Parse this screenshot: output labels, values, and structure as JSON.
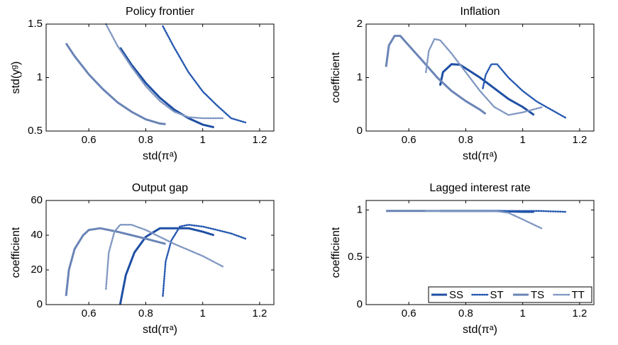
{
  "chart_data": [
    {
      "type": "line",
      "title": "Policy frontier",
      "xlabel": "std(πᵃ)",
      "ylabel": "std(yᵍ)",
      "xlim": [
        0.45,
        1.25
      ],
      "xticks": [
        0.6,
        0.8,
        1,
        1.2
      ],
      "ylim": [
        0.5,
        1.5
      ],
      "yticks": [
        0.5,
        1,
        1.5
      ],
      "series": [
        {
          "name": "SS",
          "color": "#1f4fa3",
          "linestyle": "solid",
          "linewidth": 3,
          "x": [
            0.71,
            0.75,
            0.8,
            0.85,
            0.9,
            0.95,
            1.0,
            1.04
          ],
          "values": [
            1.28,
            1.12,
            0.95,
            0.81,
            0.7,
            0.62,
            0.56,
            0.535
          ]
        },
        {
          "name": "ST",
          "color": "#2457b0",
          "linestyle": "dotted",
          "linewidth": 2.5,
          "x": [
            0.86,
            0.9,
            0.95,
            1.0,
            1.05,
            1.1,
            1.15
          ],
          "values": [
            1.48,
            1.28,
            1.05,
            0.87,
            0.74,
            0.62,
            0.58
          ]
        },
        {
          "name": "TS",
          "color": "#6a84b6",
          "linestyle": "solid",
          "linewidth": 3,
          "x": [
            0.52,
            0.55,
            0.6,
            0.65,
            0.7,
            0.75,
            0.8,
            0.85,
            0.87
          ],
          "values": [
            1.32,
            1.2,
            1.03,
            0.89,
            0.77,
            0.68,
            0.61,
            0.57,
            0.565
          ]
        },
        {
          "name": "TT",
          "color": "#8097c2",
          "linestyle": "dotted",
          "linewidth": 2.5,
          "x": [
            0.66,
            0.7,
            0.75,
            0.8,
            0.85,
            0.9,
            0.95,
            1.0,
            1.07
          ],
          "values": [
            1.5,
            1.3,
            1.1,
            0.92,
            0.78,
            0.68,
            0.63,
            0.62,
            0.62
          ]
        }
      ]
    },
    {
      "type": "line",
      "title": "Inflation",
      "xlabel": "std(πᵃ)",
      "ylabel": "coefficient",
      "xlim": [
        0.45,
        1.25
      ],
      "xticks": [
        0.6,
        0.8,
        1,
        1.2
      ],
      "ylim": [
        0,
        2
      ],
      "yticks": [
        0,
        1,
        2
      ],
      "series": [
        {
          "name": "SS",
          "color": "#1f4fa3",
          "linestyle": "solid",
          "linewidth": 3,
          "x": [
            0.71,
            0.72,
            0.75,
            0.78,
            0.85,
            0.9,
            0.95,
            1.0,
            1.04
          ],
          "values": [
            0.85,
            1.1,
            1.25,
            1.24,
            1.0,
            0.8,
            0.6,
            0.45,
            0.3
          ]
        },
        {
          "name": "ST",
          "color": "#2457b0",
          "linestyle": "dotted",
          "linewidth": 2.5,
          "x": [
            0.86,
            0.87,
            0.89,
            0.91,
            0.95,
            1.0,
            1.05,
            1.1,
            1.15
          ],
          "values": [
            0.8,
            1.05,
            1.25,
            1.25,
            1.0,
            0.75,
            0.55,
            0.4,
            0.25
          ]
        },
        {
          "name": "TS",
          "color": "#6a84b6",
          "linestyle": "solid",
          "linewidth": 3,
          "x": [
            0.52,
            0.53,
            0.55,
            0.57,
            0.6,
            0.65,
            0.7,
            0.75,
            0.8,
            0.85,
            0.87
          ],
          "values": [
            1.2,
            1.6,
            1.78,
            1.78,
            1.6,
            1.3,
            1.0,
            0.75,
            0.56,
            0.4,
            0.32
          ]
        },
        {
          "name": "TT",
          "color": "#8097c2",
          "linestyle": "dotted",
          "linewidth": 2.5,
          "x": [
            0.66,
            0.67,
            0.69,
            0.71,
            0.75,
            0.8,
            0.85,
            0.9,
            0.95,
            1.0,
            1.07
          ],
          "values": [
            1.1,
            1.5,
            1.72,
            1.7,
            1.45,
            1.1,
            0.75,
            0.45,
            0.3,
            0.35,
            0.45
          ]
        }
      ]
    },
    {
      "type": "line",
      "title": "Output gap",
      "xlabel": "std(πᵃ)",
      "ylabel": "coefficient",
      "xlim": [
        0.45,
        1.25
      ],
      "xticks": [
        0.6,
        0.8,
        1,
        1.2
      ],
      "ylim": [
        0,
        60
      ],
      "yticks": [
        0,
        20,
        40,
        60
      ],
      "series": [
        {
          "name": "SS",
          "color": "#1f4fa3",
          "linestyle": "solid",
          "linewidth": 3,
          "x": [
            0.71,
            0.73,
            0.76,
            0.8,
            0.85,
            0.9,
            0.95,
            1.0,
            1.04
          ],
          "values": [
            0,
            17,
            30,
            39,
            44,
            44,
            44,
            42,
            40
          ]
        },
        {
          "name": "ST",
          "color": "#2457b0",
          "linestyle": "dotted",
          "linewidth": 2.5,
          "x": [
            0.86,
            0.87,
            0.89,
            0.92,
            0.95,
            1.0,
            1.05,
            1.1,
            1.15
          ],
          "values": [
            5,
            25,
            37,
            45,
            46,
            45,
            43,
            41,
            38
          ]
        },
        {
          "name": "TS",
          "color": "#6a84b6",
          "linestyle": "solid",
          "linewidth": 3,
          "x": [
            0.52,
            0.53,
            0.55,
            0.58,
            0.6,
            0.64,
            0.7,
            0.75,
            0.8,
            0.87
          ],
          "values": [
            5,
            20,
            32,
            40,
            43,
            44,
            42,
            40,
            38,
            35
          ]
        },
        {
          "name": "TT",
          "color": "#8097c2",
          "linestyle": "dotted",
          "linewidth": 2.5,
          "x": [
            0.66,
            0.67,
            0.69,
            0.71,
            0.75,
            0.8,
            0.9,
            1.0,
            1.07
          ],
          "values": [
            9,
            30,
            42,
            46,
            46,
            43,
            35,
            28,
            22
          ]
        }
      ]
    },
    {
      "type": "line",
      "title": "Lagged interest rate",
      "xlabel": "std(πᵃ)",
      "ylabel": "coefficient",
      "xlim": [
        0.45,
        1.25
      ],
      "xticks": [
        0.6,
        0.8,
        1,
        1.2
      ],
      "ylim": [
        0,
        1.1
      ],
      "yticks": [
        0,
        0.5,
        1
      ],
      "legend": "lower right",
      "series": [
        {
          "name": "SS",
          "color": "#1f4fa3",
          "linestyle": "solid",
          "linewidth": 3,
          "x": [
            0.71,
            0.8,
            0.9,
            1.0,
            1.04
          ],
          "values": [
            0.99,
            0.99,
            0.99,
            0.98,
            0.98
          ]
        },
        {
          "name": "ST",
          "color": "#2457b0",
          "linestyle": "dotted",
          "linewidth": 2.5,
          "x": [
            0.86,
            0.95,
            1.05,
            1.15
          ],
          "values": [
            0.99,
            0.99,
            0.99,
            0.98
          ]
        },
        {
          "name": "TS",
          "color": "#6a84b6",
          "linestyle": "solid",
          "linewidth": 3,
          "x": [
            0.52,
            0.6,
            0.7,
            0.8,
            0.87
          ],
          "values": [
            0.99,
            0.99,
            0.99,
            0.99,
            0.99
          ]
        },
        {
          "name": "TT",
          "color": "#8097c2",
          "linestyle": "dotted",
          "linewidth": 2.5,
          "x": [
            0.66,
            0.8,
            0.9,
            0.95,
            1.0,
            1.07
          ],
          "values": [
            0.99,
            0.99,
            0.99,
            0.97,
            0.9,
            0.8
          ]
        }
      ]
    }
  ]
}
